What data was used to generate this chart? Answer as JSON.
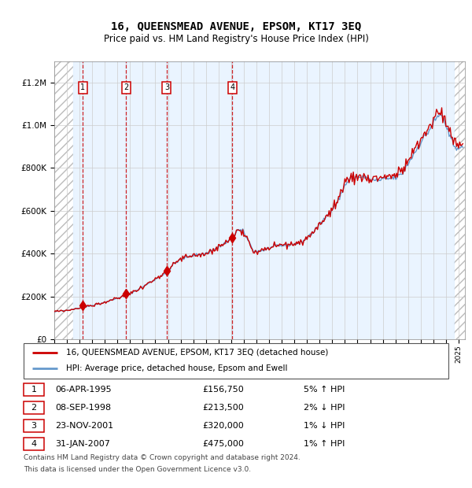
{
  "title": "16, QUEENSMEAD AVENUE, EPSOM, KT17 3EQ",
  "subtitle": "Price paid vs. HM Land Registry's House Price Index (HPI)",
  "sales": [
    {
      "num": 1,
      "date_label": "06-APR-1995",
      "date_x": 1995.27,
      "price": 156750,
      "pct": "5%",
      "dir": "↑"
    },
    {
      "num": 2,
      "date_label": "08-SEP-1998",
      "date_x": 1998.69,
      "price": 213500,
      "pct": "2%",
      "dir": "↓"
    },
    {
      "num": 3,
      "date_label": "23-NOV-2001",
      "date_x": 2001.9,
      "price": 320000,
      "pct": "1%",
      "dir": "↓"
    },
    {
      "num": 4,
      "date_label": "31-JAN-2007",
      "date_x": 2007.08,
      "price": 475000,
      "pct": "1%",
      "dir": "↑"
    }
  ],
  "legend_line1": "16, QUEENSMEAD AVENUE, EPSOM, KT17 3EQ (detached house)",
  "legend_line2": "HPI: Average price, detached house, Epsom and Ewell",
  "footer1": "Contains HM Land Registry data © Crown copyright and database right 2024.",
  "footer2": "This data is licensed under the Open Government Licence v3.0.",
  "xlim": [
    1993.0,
    2025.5
  ],
  "ylim": [
    0,
    1300000
  ],
  "hpi_color": "#6699cc",
  "price_color": "#cc0000",
  "sale_bg_color": "#ddeeff",
  "grid_color": "#cccccc",
  "hatch_left_end": 1994.5,
  "hatch_right_start": 2024.6
}
